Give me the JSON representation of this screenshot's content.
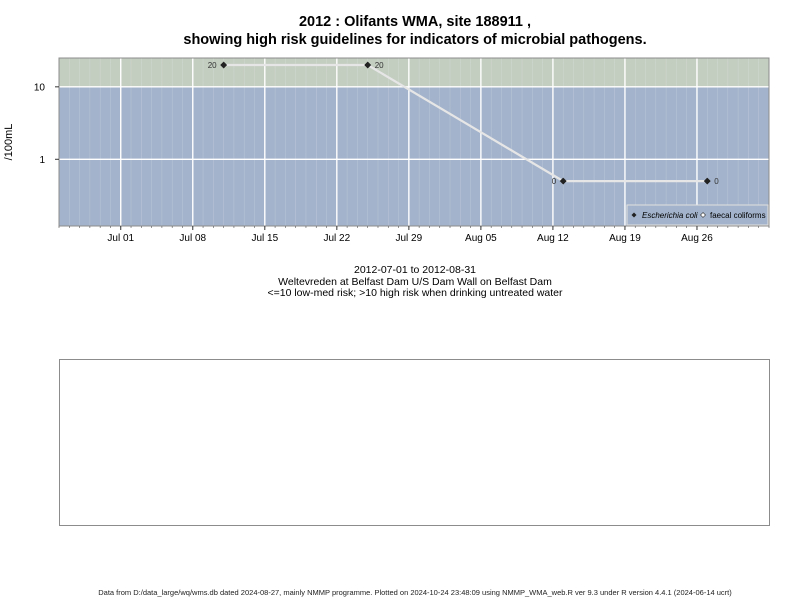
{
  "title_line1": "2012 : Olifants WMA, site 188911 ,",
  "title_line2": "showing high risk guidelines for indicators of microbial pathogens.",
  "subtitle_line1": "2012-07-01 to 2012-08-31",
  "subtitle_line2": "Weltevreden at Belfast Dam U/S Dam Wall on Belfast Dam",
  "subtitle_line3": "<=10 low-med risk; >10 high risk when drinking untreated water",
  "footer": "Data from D:/data_large/wq/wms.db dated 2024-08-27, mainly NMMP programme. Plotted on 2024-10-24 23:48:09 using NMMP_WMA_web.R ver 9.3 under R version 4.4.1 (2024-06-14 ucrt)",
  "colors": {
    "low_risk_band": "#a3b3cb",
    "high_risk_band": "#c3cdc0",
    "series_line": "#e6e6e6",
    "grid": "#ffffff"
  },
  "chart_data": {
    "type": "line",
    "ylabel": "/100mL",
    "y_scale": "log",
    "ylim": [
      0.12,
      25
    ],
    "xlim": [
      "2012-06-25",
      "2012-09-02"
    ],
    "x_ticks": [
      {
        "date": "2012-07-01",
        "label": "Jul 01"
      },
      {
        "date": "2012-07-08",
        "label": "Jul 08"
      },
      {
        "date": "2012-07-15",
        "label": "Jul 15"
      },
      {
        "date": "2012-07-22",
        "label": "Jul 22"
      },
      {
        "date": "2012-07-29",
        "label": "Jul 29"
      },
      {
        "date": "2012-08-05",
        "label": "Aug 05"
      },
      {
        "date": "2012-08-12",
        "label": "Aug 12"
      },
      {
        "date": "2012-08-19",
        "label": "Aug 19"
      },
      {
        "date": "2012-08-26",
        "label": "Aug 26"
      }
    ],
    "y_ticks": [
      {
        "value": 1,
        "label": "1"
      },
      {
        "value": 10,
        "label": "10"
      }
    ],
    "guideline_threshold": 10,
    "legend_position": "bottom-right",
    "legend": [
      {
        "label": "Escherichia coli",
        "marker": "filled-diamond"
      },
      {
        "label": "faecal coliforms",
        "marker": "open-diamond"
      }
    ],
    "series": [
      {
        "name": "Escherichia coli",
        "points": [
          {
            "x": "2012-07-11",
            "y": 20,
            "label": "20",
            "label_side": "left"
          },
          {
            "x": "2012-07-25",
            "y": 20,
            "label": "20",
            "label_side": "right"
          },
          {
            "x": "2012-08-13",
            "y": 0.5,
            "label": "0",
            "label_side": "left"
          },
          {
            "x": "2012-08-27",
            "y": 0.5,
            "label": "0",
            "label_side": "right"
          }
        ]
      }
    ]
  }
}
